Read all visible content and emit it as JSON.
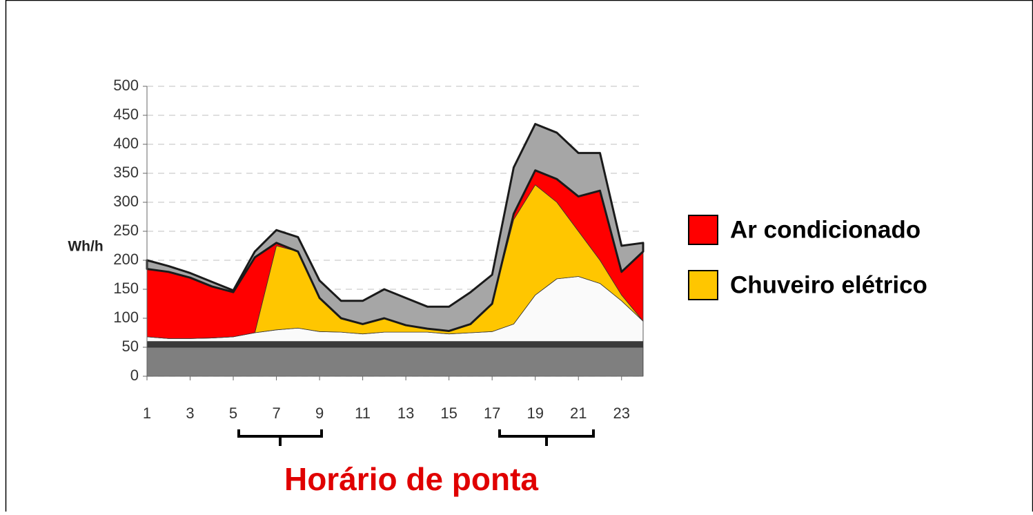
{
  "chart_data": {
    "type": "stacked_area",
    "y_label": "Wh/h",
    "x": [
      1,
      2,
      3,
      4,
      5,
      6,
      7,
      8,
      9,
      10,
      11,
      12,
      13,
      14,
      15,
      16,
      17,
      18,
      19,
      20,
      21,
      22,
      23,
      24
    ],
    "xlim": [
      1,
      24
    ],
    "xticks": [
      1,
      3,
      5,
      7,
      9,
      11,
      13,
      15,
      17,
      19,
      21,
      23
    ],
    "ylim": [
      0,
      500
    ],
    "yticks": [
      0,
      50,
      100,
      150,
      200,
      250,
      300,
      350,
      400,
      450,
      500
    ],
    "grid": true,
    "series": [
      {
        "color": "#7f7f7f",
        "values": [
          50,
          50,
          50,
          50,
          50,
          50,
          50,
          50,
          50,
          50,
          50,
          50,
          50,
          50,
          50,
          50,
          50,
          50,
          50,
          50,
          50,
          50,
          50,
          50
        ]
      },
      {
        "color": "#3a3a3a",
        "values": [
          10,
          10,
          10,
          10,
          10,
          10,
          10,
          10,
          10,
          10,
          10,
          10,
          10,
          10,
          10,
          10,
          10,
          10,
          10,
          10,
          10,
          10,
          10,
          10
        ]
      },
      {
        "color": "#fafafa",
        "values": [
          8,
          5,
          5,
          6,
          8,
          15,
          20,
          23,
          17,
          16,
          13,
          16,
          16,
          16,
          13,
          15,
          17,
          30,
          80,
          108,
          112,
          100,
          70,
          35
        ]
      },
      {
        "name": "Chuveiro elétrico",
        "color": "#ffc600",
        "values": [
          0,
          0,
          0,
          0,
          0,
          0,
          145,
          132,
          58,
          24,
          17,
          24,
          12,
          6,
          5,
          15,
          48,
          180,
          190,
          132,
          78,
          40,
          10,
          0
        ]
      },
      {
        "name": "Ar condicionado",
        "color": "#ff0000",
        "values": [
          117,
          115,
          105,
          89,
          77,
          130,
          5,
          0,
          0,
          0,
          0,
          0,
          0,
          0,
          0,
          0,
          0,
          10,
          25,
          40,
          60,
          120,
          40,
          120
        ]
      },
      {
        "color": "#a6a6a6",
        "values": [
          15,
          10,
          8,
          8,
          3,
          10,
          22,
          25,
          30,
          30,
          40,
          50,
          47,
          38,
          42,
          55,
          50,
          80,
          80,
          80,
          75,
          65,
          45,
          15
        ]
      }
    ],
    "annotation": "Horário de ponta"
  }
}
